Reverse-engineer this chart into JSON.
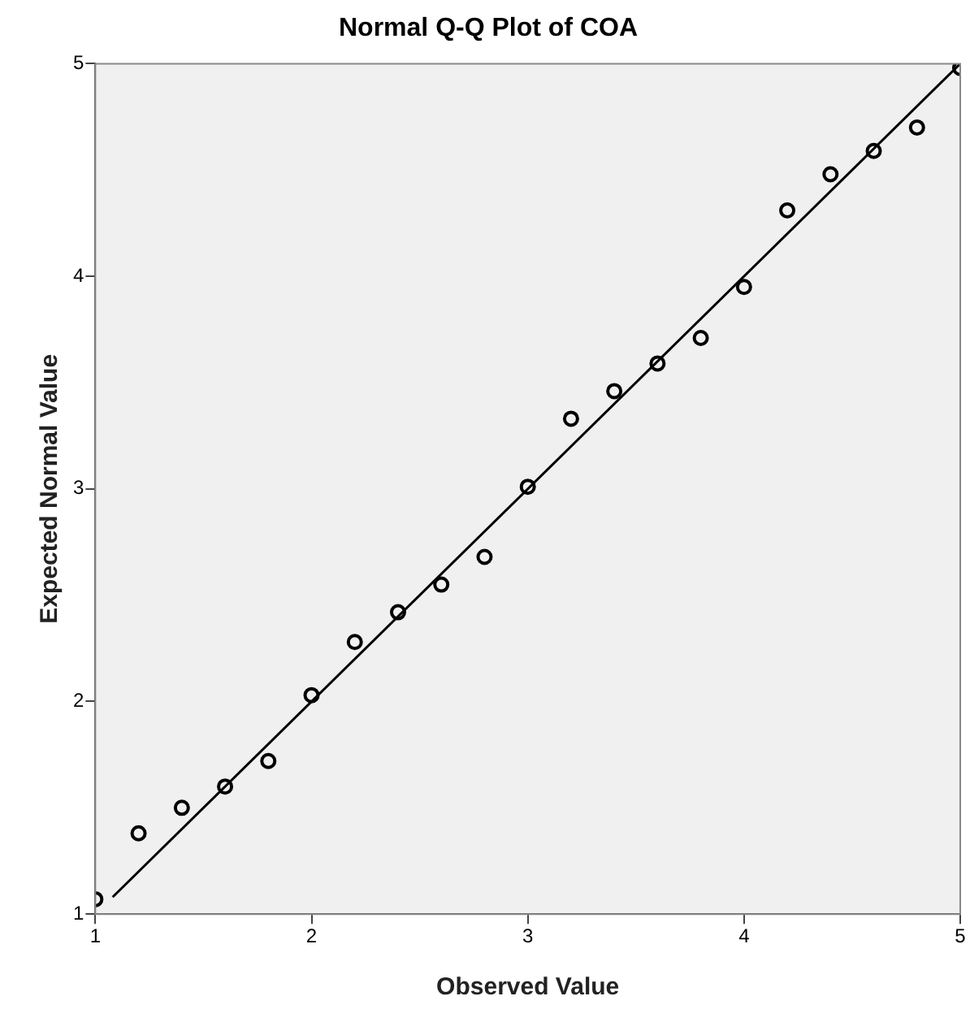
{
  "chart_data": {
    "type": "scatter",
    "title": "Normal Q-Q Plot of COA",
    "xlabel": "Observed Value",
    "ylabel": "Expected Normal Value",
    "x": [
      1,
      1.2,
      1.4,
      1.6,
      1.8,
      2,
      2.2,
      2.4,
      2.6,
      2.8,
      3,
      3.2,
      3.4,
      3.6,
      3.8,
      4,
      4.2,
      4.4,
      4.6,
      4.8,
      5
    ],
    "series": [
      {
        "color": "#000000",
        "marker": "circle",
        "values": [
          1.07,
          1.38,
          1.5,
          1.6,
          1.72,
          2.03,
          2.28,
          2.42,
          2.55,
          2.68,
          3.01,
          3.33,
          3.46,
          3.59,
          3.71,
          3.95,
          4.31,
          4.48,
          4.59,
          4.7,
          4.98
        ]
      },
      {
        "type": "line",
        "color": "#000000",
        "marker": "none",
        "x": [
          1.08,
          5
        ],
        "values": [
          1.08,
          5
        ]
      }
    ],
    "xlim": [
      1,
      5
    ],
    "ylim": [
      1,
      5
    ],
    "xticks": [
      1,
      2,
      3,
      4,
      5
    ],
    "yticks": [
      1,
      2,
      3,
      4,
      5
    ],
    "grid": false,
    "legend": false
  }
}
